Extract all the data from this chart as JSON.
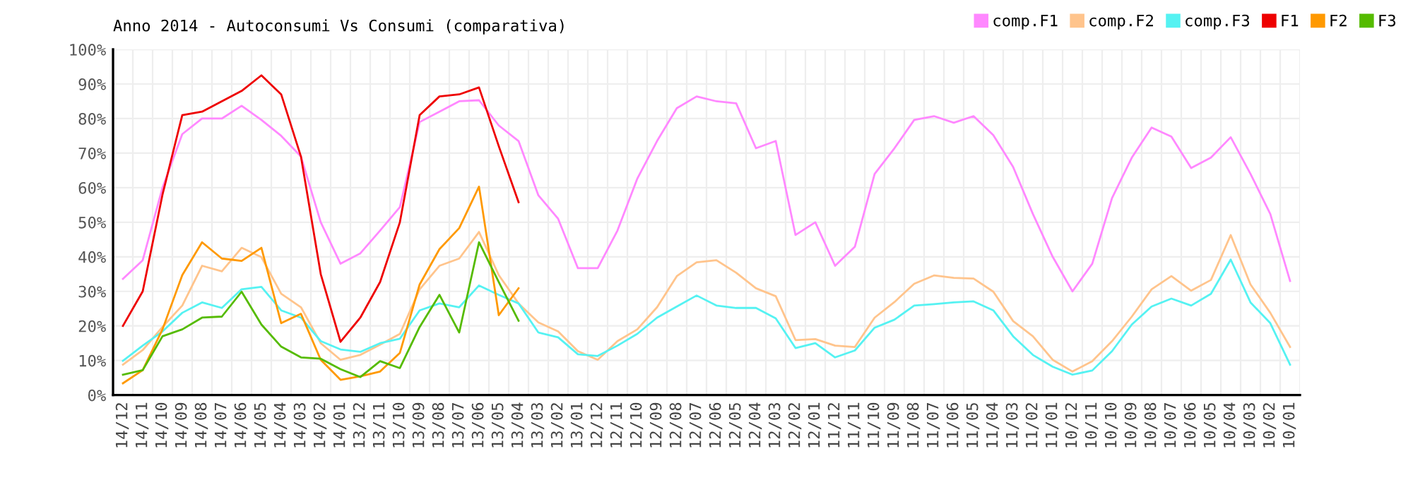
{
  "chart_data": {
    "type": "line",
    "title": "Anno 2014 - Autoconsumi Vs Consumi (comparativa)",
    "categories": [
      "14/12",
      "14/11",
      "14/10",
      "14/09",
      "14/08",
      "14/07",
      "14/06",
      "14/05",
      "14/04",
      "14/03",
      "14/02",
      "14/01",
      "13/12",
      "13/11",
      "13/10",
      "13/09",
      "13/08",
      "13/07",
      "13/06",
      "13/05",
      "13/04",
      "13/03",
      "13/02",
      "13/01",
      "12/12",
      "12/11",
      "12/10",
      "12/09",
      "12/08",
      "12/07",
      "12/06",
      "12/05",
      "12/04",
      "12/03",
      "12/02",
      "12/01",
      "11/12",
      "11/11",
      "11/10",
      "11/09",
      "11/08",
      "11/07",
      "11/06",
      "11/05",
      "11/04",
      "11/03",
      "11/02",
      "11/01",
      "10/12",
      "10/11",
      "10/10",
      "10/09",
      "10/08",
      "10/07",
      "10/06",
      "10/05",
      "10/04",
      "10/03",
      "10/02",
      "10/01"
    ],
    "series": [
      {
        "name": "comp.F1",
        "color": "#ff88ff",
        "values": [
          33.6,
          39,
          60,
          75.5,
          80,
          80,
          83.7,
          79.6,
          75,
          69,
          50,
          38,
          41,
          47.6,
          54.4,
          79,
          82,
          85,
          85.3,
          78,
          73.5,
          57.8,
          51,
          36.7,
          36.7,
          47.6,
          62.6,
          73.5,
          83,
          86.4,
          85,
          84.4,
          71.4,
          73.5,
          46.3,
          50,
          37.4,
          42.9,
          64,
          71.4,
          79.6,
          80.7,
          78.8,
          80.7,
          75.2,
          66,
          52.4,
          40,
          30,
          38,
          57,
          68.7,
          77.4,
          74.8,
          65.7,
          68.7,
          74.6,
          64,
          52.4,
          33
        ]
      },
      {
        "name": "comp.F2",
        "color": "#ffc48c",
        "values": [
          8.8,
          13,
          19.7,
          25.9,
          37.4,
          35.8,
          42.6,
          39.9,
          29.3,
          25.4,
          15,
          10.2,
          11.6,
          14.6,
          17.7,
          30.6,
          37.4,
          39.5,
          47.2,
          34.7,
          26.5,
          21,
          18.4,
          12.7,
          10.2,
          15.6,
          19,
          25.4,
          34.4,
          38.4,
          39,
          35.4,
          30.9,
          28.6,
          15.9,
          16.2,
          14.3,
          13.9,
          22.4,
          26.9,
          32.2,
          34.6,
          33.9,
          33.7,
          29.9,
          21.4,
          17,
          10.2,
          6.8,
          9.8,
          15.6,
          22.7,
          30.6,
          34.4,
          30.2,
          33.3,
          46.3,
          32,
          23.8,
          13.9
        ]
      },
      {
        "name": "comp.F3",
        "color": "#55f2f2",
        "values": [
          9.9,
          14.3,
          18.4,
          23.8,
          26.8,
          25.2,
          30.6,
          31.3,
          24.5,
          22.4,
          15.6,
          13.2,
          12.5,
          15,
          16.3,
          24.5,
          26.5,
          25.4,
          31.7,
          29,
          26.5,
          18.1,
          16.7,
          11.8,
          11.3,
          14.3,
          17.7,
          22.4,
          25.6,
          28.8,
          25.9,
          25.2,
          25.2,
          22.2,
          13.6,
          15,
          10.9,
          12.9,
          19.5,
          21.8,
          25.9,
          26.3,
          26.8,
          27.1,
          24.5,
          17,
          11.6,
          8.2,
          5.9,
          7.1,
          12.7,
          20.4,
          25.6,
          27.9,
          25.9,
          29.3,
          39.2,
          26.8,
          20.8,
          8.8
        ]
      },
      {
        "name": "F1",
        "color": "#ee0000",
        "values": [
          20,
          30,
          58,
          81,
          82,
          85,
          88,
          92.5,
          87,
          69,
          35,
          15.4,
          22.4,
          32.7,
          50,
          81,
          86.4,
          87,
          89,
          72,
          55.8,
          null,
          null,
          null,
          null,
          null,
          null,
          null,
          null,
          null,
          null,
          null,
          null,
          null,
          null,
          null,
          null,
          null,
          null,
          null,
          null,
          null,
          null,
          null,
          null,
          null,
          null,
          null,
          null,
          null,
          null,
          null,
          null,
          null,
          null,
          null,
          null,
          null,
          null,
          null
        ]
      },
      {
        "name": "F2",
        "color": "#ff9900",
        "values": [
          3.4,
          7.2,
          19,
          34.7,
          44.2,
          39.5,
          38.8,
          42.6,
          20.8,
          23.5,
          10.2,
          4.4,
          5.4,
          6.8,
          12.2,
          32,
          42.2,
          48.3,
          60.3,
          23.1,
          30.9,
          null,
          null,
          null,
          null,
          null,
          null,
          null,
          null,
          null,
          null,
          null,
          null,
          null,
          null,
          null,
          null,
          null,
          null,
          null,
          null,
          null,
          null,
          null,
          null,
          null,
          null,
          null,
          null,
          null,
          null,
          null,
          null,
          null,
          null,
          null,
          null,
          null,
          null,
          null
        ]
      },
      {
        "name": "F3",
        "color": "#55bb00",
        "values": [
          5.9,
          7.2,
          17,
          19,
          22.4,
          22.7,
          29.9,
          20.4,
          14,
          10.9,
          10.5,
          7.5,
          5.2,
          9.8,
          7.8,
          19.7,
          29,
          18.1,
          44.2,
          32.7,
          21.5,
          null,
          null,
          null,
          null,
          null,
          null,
          null,
          null,
          null,
          null,
          null,
          null,
          null,
          null,
          null,
          null,
          null,
          null,
          null,
          null,
          null,
          null,
          null,
          null,
          null,
          null,
          null,
          null,
          null,
          null,
          null,
          null,
          null,
          null,
          null,
          null,
          null,
          null,
          null
        ]
      }
    ],
    "ylim": [
      0,
      100
    ],
    "yticks": [
      {
        "value": 0,
        "label": "0%"
      },
      {
        "value": 10,
        "label": "10%"
      },
      {
        "value": 20,
        "label": "20%"
      },
      {
        "value": 30,
        "label": "30%"
      },
      {
        "value": 40,
        "label": "40%"
      },
      {
        "value": 50,
        "label": "50%"
      },
      {
        "value": 60,
        "label": "60%"
      },
      {
        "value": 70,
        "label": "70%"
      },
      {
        "value": 80,
        "label": "80%"
      },
      {
        "value": 90,
        "label": "90%"
      },
      {
        "value": 100,
        "label": "100%"
      }
    ],
    "grid": true,
    "legend": "top right",
    "marker": "none",
    "line_style": "solid"
  }
}
